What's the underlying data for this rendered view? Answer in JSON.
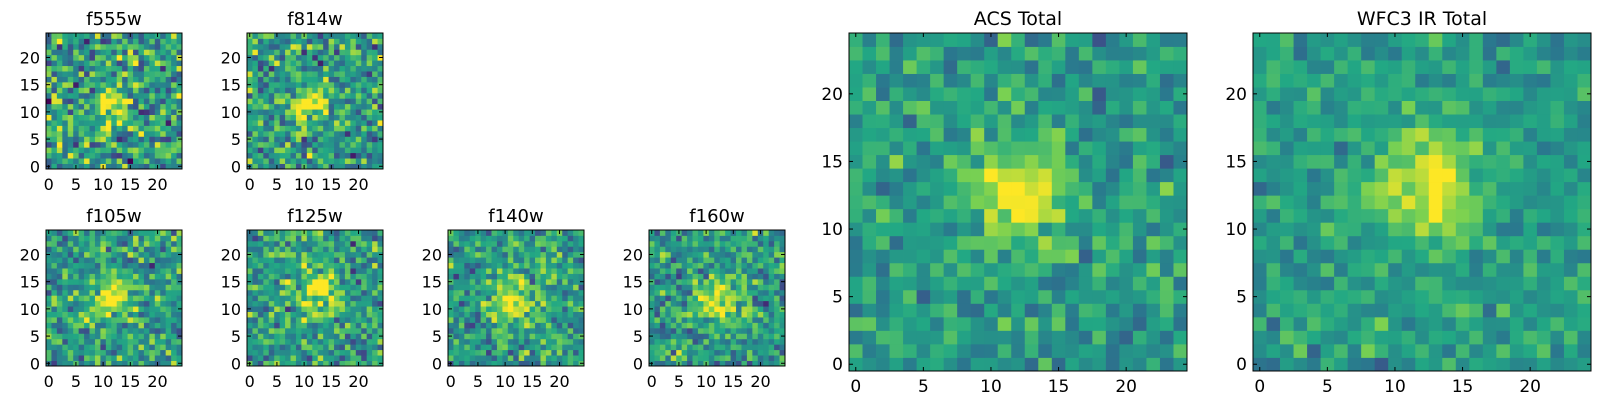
{
  "colormap": {
    "name": "viridis",
    "stops": [
      "#440154",
      "#414487",
      "#2a788e",
      "#22a884",
      "#7ad151",
      "#fde725"
    ]
  },
  "chart_data": [
    {
      "type": "heatmap",
      "title": "f555w",
      "grid_size": 25,
      "xticks": [
        0,
        5,
        10,
        15,
        20
      ],
      "yticks": [
        0,
        5,
        10,
        15,
        20
      ],
      "xlim": [
        -0.5,
        24.5
      ],
      "ylim": [
        -0.5,
        24.5
      ],
      "peak": {
        "x": 11.5,
        "y": 12.0,
        "sigma": 2.2
      },
      "noise": 0.42,
      "seed": 11
    },
    {
      "type": "heatmap",
      "title": "f814w",
      "grid_size": 25,
      "xticks": [
        0,
        5,
        10,
        15,
        20
      ],
      "yticks": [
        0,
        5,
        10,
        15,
        20
      ],
      "xlim": [
        -0.5,
        24.5
      ],
      "ylim": [
        -0.5,
        24.5
      ],
      "peak": {
        "x": 11.0,
        "y": 11.5,
        "sigma": 2.2
      },
      "noise": 0.36,
      "seed": 23
    },
    {
      "type": "heatmap",
      "title": "f105w",
      "grid_size": 25,
      "xticks": [
        0,
        5,
        10,
        15,
        20
      ],
      "yticks": [
        0,
        5,
        10,
        15,
        20
      ],
      "xlim": [
        -0.5,
        24.5
      ],
      "ylim": [
        -0.5,
        24.5
      ],
      "peak": {
        "x": 11.5,
        "y": 12.5,
        "sigma": 2.6
      },
      "noise": 0.32,
      "seed": 37
    },
    {
      "type": "heatmap",
      "title": "f125w",
      "grid_size": 25,
      "xticks": [
        0,
        5,
        10,
        15,
        20
      ],
      "yticks": [
        0,
        5,
        10,
        15,
        20
      ],
      "xlim": [
        -0.5,
        24.5
      ],
      "ylim": [
        -0.5,
        24.5
      ],
      "peak": {
        "x": 12.5,
        "y": 13.0,
        "sigma": 2.6
      },
      "noise": 0.32,
      "seed": 41
    },
    {
      "type": "heatmap",
      "title": "f140w",
      "grid_size": 25,
      "xticks": [
        0,
        5,
        10,
        15,
        20
      ],
      "yticks": [
        0,
        5,
        10,
        15,
        20
      ],
      "xlim": [
        -0.5,
        24.5
      ],
      "ylim": [
        -0.5,
        24.5
      ],
      "peak": {
        "x": 11.5,
        "y": 11.5,
        "sigma": 2.8
      },
      "noise": 0.3,
      "seed": 53
    },
    {
      "type": "heatmap",
      "title": "f160w",
      "grid_size": 25,
      "xticks": [
        0,
        5,
        10,
        15,
        20
      ],
      "yticks": [
        0,
        5,
        10,
        15,
        20
      ],
      "xlim": [
        -0.5,
        24.5
      ],
      "ylim": [
        -0.5,
        24.5
      ],
      "peak": {
        "x": 12.0,
        "y": 12.0,
        "sigma": 2.8
      },
      "noise": 0.3,
      "seed": 67
    },
    {
      "type": "heatmap",
      "title": "ACS Total",
      "grid_size": 25,
      "xticks": [
        0,
        5,
        10,
        15,
        20
      ],
      "yticks": [
        0,
        5,
        10,
        15,
        20
      ],
      "xlim": [
        -0.5,
        24.5
      ],
      "ylim": [
        -0.5,
        24.5
      ],
      "peak": {
        "x": 12.0,
        "y": 12.5,
        "sigma": 2.4
      },
      "noise": 0.22,
      "seed": 79
    },
    {
      "type": "heatmap",
      "title": "WFC3 IR Total",
      "grid_size": 25,
      "xticks": [
        0,
        5,
        10,
        15,
        20
      ],
      "yticks": [
        0,
        5,
        10,
        15,
        20
      ],
      "xlim": [
        -0.5,
        24.5
      ],
      "ylim": [
        -0.5,
        24.5
      ],
      "peak": {
        "x": 12.5,
        "y": 13.0,
        "sigma": 2.6
      },
      "noise": 0.18,
      "seed": 97
    }
  ]
}
